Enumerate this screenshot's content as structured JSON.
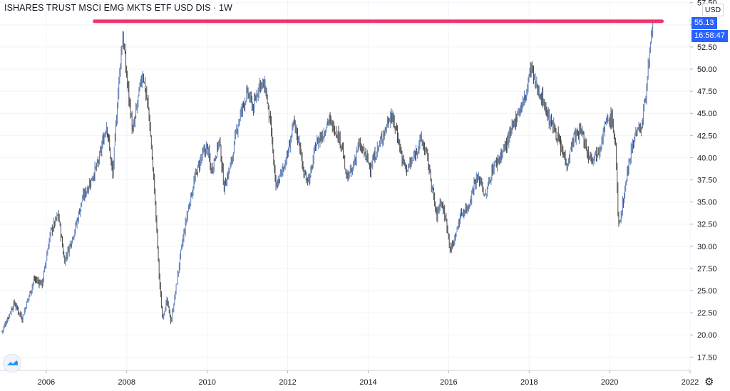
{
  "header": {
    "title": "ISHARES TRUST MSCI EMG MKTS ETF USD DIS · 1W",
    "currency_button": "USD"
  },
  "price_scale": {
    "last_price_label": "55.13",
    "countdown_label": "16:58:47",
    "tag_color": "#2962ff"
  },
  "icons": {
    "logo": "tradingview-cloud-icon",
    "settings": "gear-icon"
  },
  "colors": {
    "candles": "#5b7bb5",
    "candles_dark": "#4a4a4a",
    "resistance_line": "#f0336b",
    "grid": "#f0f3fa",
    "axis_text": "#131722"
  },
  "chart_data": {
    "type": "candlestick",
    "interval": "1W",
    "title": "ISHARES TRUST MSCI EMG MKTS ETF USD DIS · 1W",
    "xlabel": "",
    "ylabel": "",
    "x_ticks": [
      "2006",
      "2008",
      "2010",
      "2012",
      "2014",
      "2016",
      "2018",
      "2020",
      "2022"
    ],
    "y_ticks": [
      "17.50",
      "20.00",
      "22.50",
      "25.00",
      "27.50",
      "30.00",
      "32.50",
      "35.00",
      "37.50",
      "40.00",
      "42.50",
      "45.00",
      "47.50",
      "50.00",
      "52.50",
      "55.00",
      "57.50"
    ],
    "xlim": [
      2004.85,
      2022.0
    ],
    "ylim": [
      16.0,
      57.8
    ],
    "last_price": 55.13,
    "grid": true,
    "price_path": [
      [
        2004.9,
        20.4
      ],
      [
        2005.2,
        23.6
      ],
      [
        2005.4,
        21.9
      ],
      [
        2005.7,
        26.3
      ],
      [
        2005.9,
        25.8
      ],
      [
        2006.1,
        31.5
      ],
      [
        2006.3,
        33.6
      ],
      [
        2006.45,
        28.3
      ],
      [
        2006.7,
        31.7
      ],
      [
        2006.9,
        35.4
      ],
      [
        2007.1,
        37.3
      ],
      [
        2007.3,
        39.6
      ],
      [
        2007.5,
        43.8
      ],
      [
        2007.65,
        38.0
      ],
      [
        2007.8,
        48.5
      ],
      [
        2007.9,
        53.9
      ],
      [
        2008.0,
        49.1
      ],
      [
        2008.15,
        42.8
      ],
      [
        2008.3,
        47.2
      ],
      [
        2008.4,
        49.6
      ],
      [
        2008.55,
        45.0
      ],
      [
        2008.7,
        35.6
      ],
      [
        2008.8,
        27.0
      ],
      [
        2008.88,
        22.0
      ],
      [
        2009.0,
        23.8
      ],
      [
        2009.1,
        21.5
      ],
      [
        2009.2,
        24.5
      ],
      [
        2009.35,
        29.5
      ],
      [
        2009.5,
        33.6
      ],
      [
        2009.7,
        37.8
      ],
      [
        2009.85,
        40.0
      ],
      [
        2010.0,
        41.3
      ],
      [
        2010.1,
        38.4
      ],
      [
        2010.3,
        42.0
      ],
      [
        2010.42,
        36.6
      ],
      [
        2010.6,
        39.5
      ],
      [
        2010.75,
        43.6
      ],
      [
        2010.9,
        46.1
      ],
      [
        2011.0,
        47.3
      ],
      [
        2011.15,
        45.6
      ],
      [
        2011.3,
        48.5
      ],
      [
        2011.45,
        47.8
      ],
      [
        2011.6,
        42.5
      ],
      [
        2011.7,
        36.5
      ],
      [
        2011.85,
        38.4
      ],
      [
        2012.0,
        40.4
      ],
      [
        2012.15,
        43.9
      ],
      [
        2012.3,
        41.5
      ],
      [
        2012.4,
        38.0
      ],
      [
        2012.55,
        37.6
      ],
      [
        2012.7,
        41.6
      ],
      [
        2012.9,
        42.8
      ],
      [
        2013.0,
        44.3
      ],
      [
        2013.2,
        43.1
      ],
      [
        2013.35,
        41.4
      ],
      [
        2013.45,
        37.7
      ],
      [
        2013.6,
        38.5
      ],
      [
        2013.75,
        41.4
      ],
      [
        2013.9,
        40.6
      ],
      [
        2014.05,
        38.9
      ],
      [
        2014.2,
        40.6
      ],
      [
        2014.4,
        42.9
      ],
      [
        2014.55,
        44.9
      ],
      [
        2014.7,
        43.2
      ],
      [
        2014.85,
        39.8
      ],
      [
        2014.95,
        38.7
      ],
      [
        2015.1,
        39.6
      ],
      [
        2015.3,
        42.1
      ],
      [
        2015.45,
        40.5
      ],
      [
        2015.6,
        36.4
      ],
      [
        2015.7,
        33.3
      ],
      [
        2015.8,
        35.3
      ],
      [
        2015.95,
        32.6
      ],
      [
        2016.05,
        29.5
      ],
      [
        2016.15,
        30.9
      ],
      [
        2016.3,
        33.6
      ],
      [
        2016.5,
        34.6
      ],
      [
        2016.65,
        37.4
      ],
      [
        2016.8,
        37.6
      ],
      [
        2016.9,
        35.4
      ],
      [
        2017.1,
        38.9
      ],
      [
        2017.3,
        40.3
      ],
      [
        2017.5,
        42.2
      ],
      [
        2017.7,
        44.9
      ],
      [
        2017.9,
        46.7
      ],
      [
        2018.05,
        50.4
      ],
      [
        2018.15,
        48.3
      ],
      [
        2018.35,
        46.5
      ],
      [
        2018.5,
        44.2
      ],
      [
        2018.65,
        43.1
      ],
      [
        2018.8,
        40.9
      ],
      [
        2018.95,
        39.3
      ],
      [
        2019.1,
        42.2
      ],
      [
        2019.3,
        43.1
      ],
      [
        2019.45,
        40.5
      ],
      [
        2019.6,
        40.1
      ],
      [
        2019.75,
        41.1
      ],
      [
        2019.9,
        43.9
      ],
      [
        2020.05,
        44.5
      ],
      [
        2020.15,
        41.5
      ],
      [
        2020.22,
        32.0
      ],
      [
        2020.35,
        35.5
      ],
      [
        2020.5,
        40.2
      ],
      [
        2020.65,
        42.9
      ],
      [
        2020.8,
        43.5
      ],
      [
        2020.9,
        47.5
      ],
      [
        2021.0,
        51.7
      ],
      [
        2021.08,
        55.1
      ]
    ],
    "annotations": [
      {
        "type": "horizontal_line",
        "price": 55.4,
        "from": 2007.2,
        "to": 2021.3,
        "color": "#f0336b"
      }
    ]
  }
}
